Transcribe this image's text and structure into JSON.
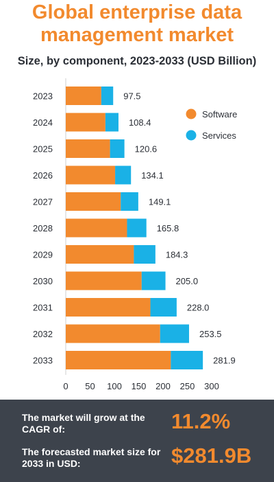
{
  "header": {
    "title_line1": "Global enterprise data",
    "title_line2": "management market",
    "subtitle": "Size, by component, 2023-2033 (USD Billion)"
  },
  "chart_data": {
    "type": "bar",
    "orientation": "horizontal",
    "stacked": true,
    "categories": [
      "2023",
      "2024",
      "2025",
      "2026",
      "2027",
      "2028",
      "2029",
      "2030",
      "2031",
      "2032",
      "2033"
    ],
    "series": [
      {
        "name": "Software",
        "color": "#f28a2e",
        "values": [
          73.0,
          81.5,
          91.0,
          101.5,
          113.0,
          126.0,
          140.0,
          156.0,
          174.0,
          194.0,
          216.0
        ]
      },
      {
        "name": "Services",
        "color": "#1ab1e6",
        "values": [
          24.5,
          26.9,
          29.6,
          32.6,
          36.1,
          39.8,
          44.3,
          49.0,
          54.0,
          59.5,
          65.9
        ]
      }
    ],
    "totals": [
      "97.5",
      "108.4",
      "120.6",
      "134.1",
      "149.1",
      "165.8",
      "184.3",
      "205.0",
      "228.0",
      "253.5",
      "281.9"
    ],
    "xticks": [
      "0",
      "50",
      "100",
      "150",
      "200",
      "250",
      "300"
    ],
    "xlim": [
      0,
      300
    ],
    "grid": false,
    "legend_position": "top-right"
  },
  "footer": {
    "cagr_label": "The market will grow at the CAGR of:",
    "cagr_value": "11.2%",
    "forecast_label": "The forecasted market size for 2033 in USD:",
    "forecast_value": "$281.9B"
  }
}
